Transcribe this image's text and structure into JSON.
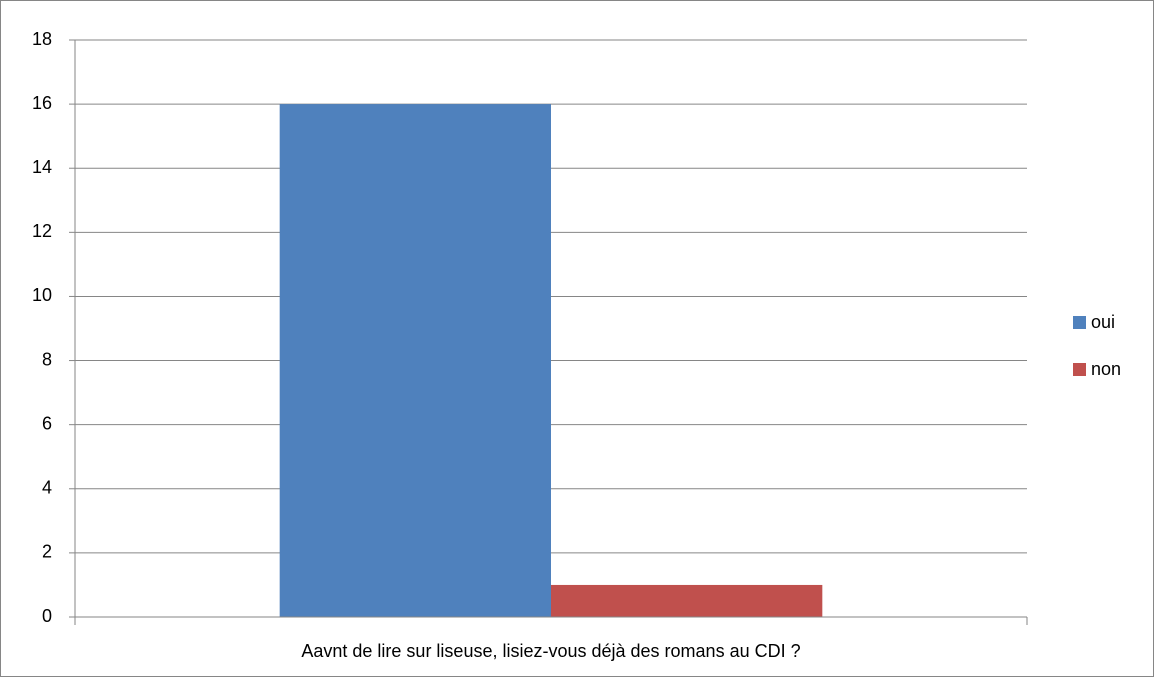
{
  "chart_data": {
    "type": "bar",
    "categories": [
      "Aavnt de lire sur liseuse, lisiez-vous déjà des romans au CDI ?"
    ],
    "series": [
      {
        "name": "oui",
        "color": "#4f81bd",
        "values": [
          16
        ]
      },
      {
        "name": "non",
        "color": "#c0504d",
        "values": [
          1
        ]
      }
    ],
    "ylim": [
      0,
      18
    ],
    "yticks": [
      0,
      2,
      4,
      6,
      8,
      10,
      12,
      14,
      16,
      18
    ],
    "grid": true,
    "legend": "right"
  }
}
